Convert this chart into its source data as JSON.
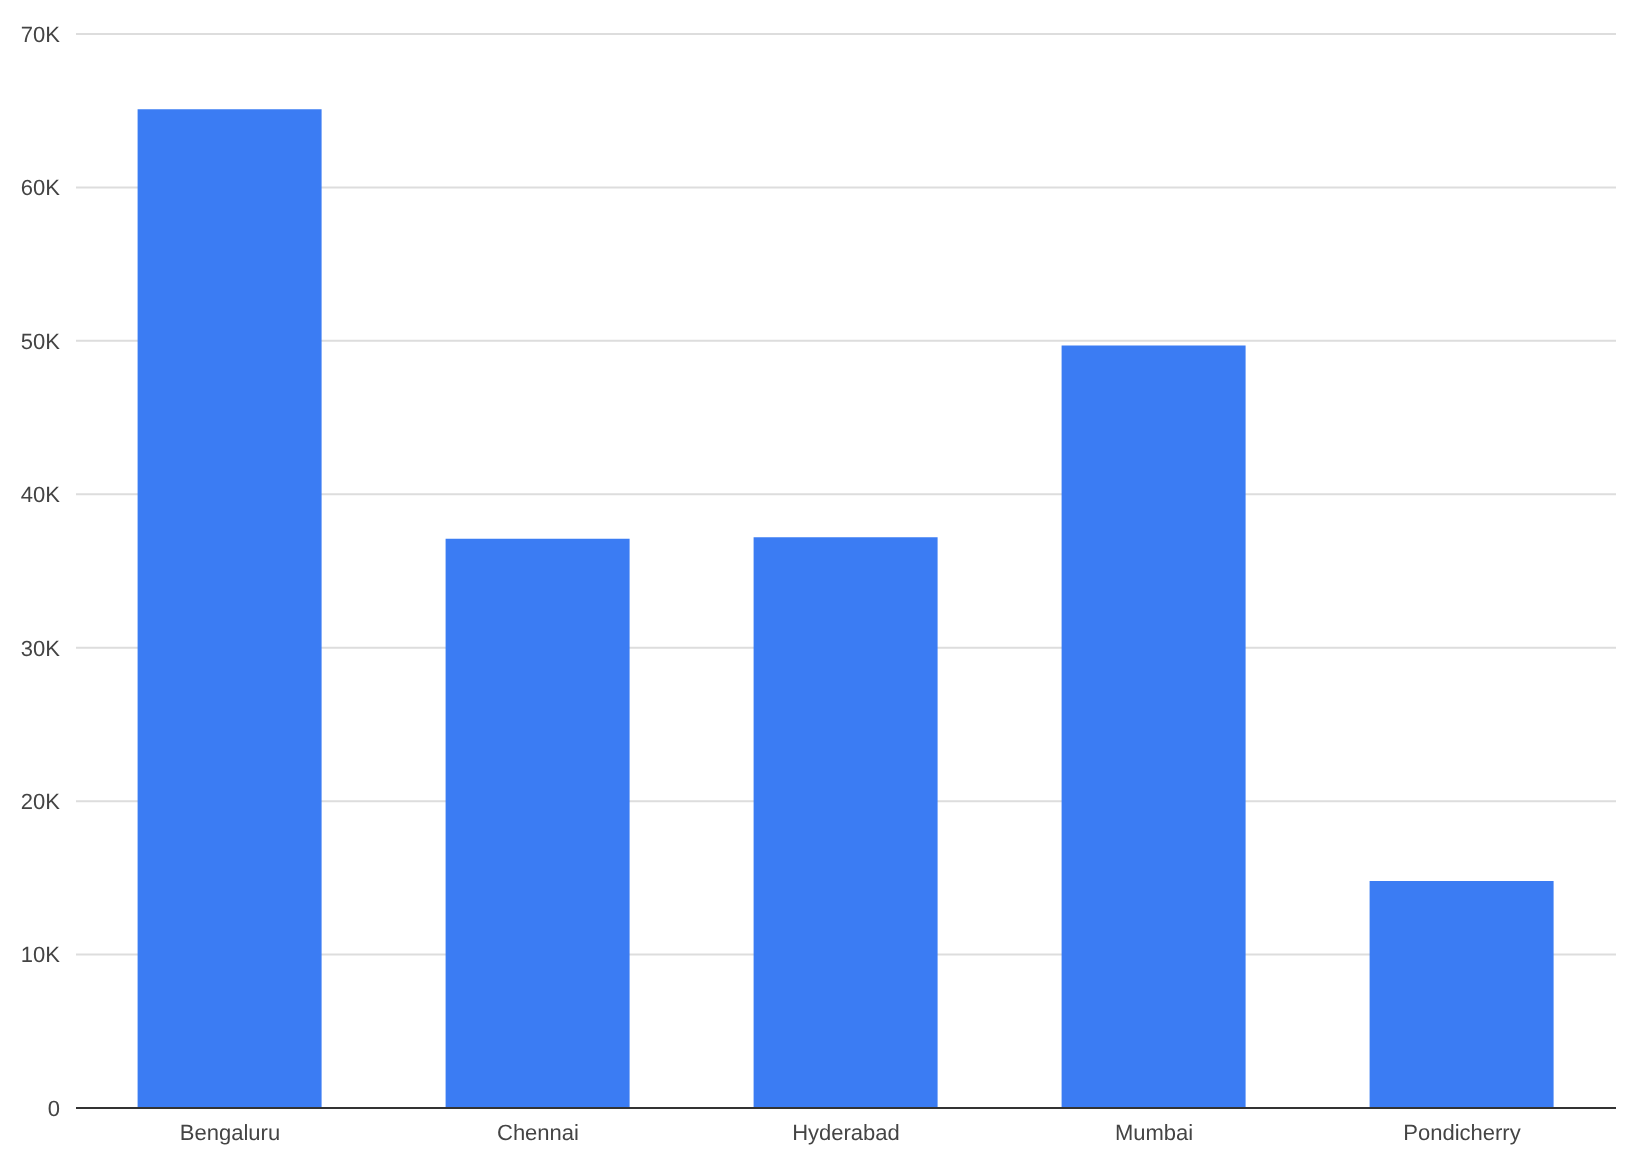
{
  "chart_data": {
    "type": "bar",
    "categories": [
      "Bengaluru",
      "Chennai",
      "Hyderabad",
      "Mumbai",
      "Pondicherry"
    ],
    "values": [
      65100,
      37100,
      37200,
      49700,
      14800
    ],
    "color": "#3b7cf3",
    "ylim": [
      0,
      70000
    ],
    "yticks": [
      0,
      {
        "value": 10000,
        "label": "10K"
      },
      {
        "value": 20000,
        "label": "20K"
      },
      {
        "value": 30000,
        "label": "30K"
      },
      {
        "value": 40000,
        "label": "40K"
      },
      {
        "value": 50000,
        "label": "50K"
      },
      {
        "value": 60000,
        "label": "60K"
      },
      {
        "value": 70000,
        "label": "70K"
      }
    ],
    "grid": "y",
    "legend": false
  }
}
